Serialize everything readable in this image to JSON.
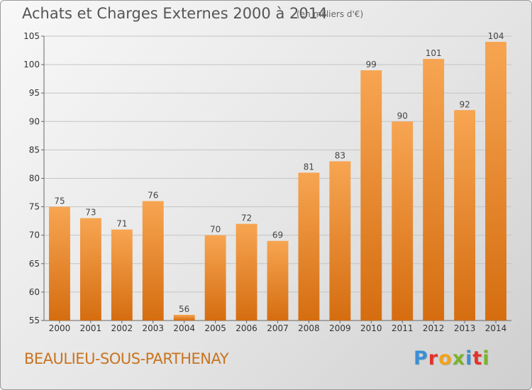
{
  "chart_data": {
    "type": "bar",
    "title": "Achats et Charges Externes 2000 à 2014",
    "subtitle": "(en milliers d'€)",
    "xlabel": "",
    "ylabel": "",
    "categories": [
      "2000",
      "2001",
      "2002",
      "2003",
      "2004",
      "2005",
      "2006",
      "2007",
      "2008",
      "2009",
      "2010",
      "2011",
      "2012",
      "2013",
      "2014"
    ],
    "values": [
      75,
      73,
      71,
      76,
      56,
      70,
      72,
      69,
      81,
      83,
      99,
      90,
      101,
      92,
      104
    ],
    "ylim": [
      55,
      105
    ],
    "yticks": [
      55,
      60,
      65,
      70,
      75,
      80,
      85,
      90,
      95,
      100,
      105
    ],
    "grid": true,
    "bar_color": "#f0922f"
  },
  "footer": {
    "commune": "BEAULIEU-SOUS-PARTHENAY",
    "logo_text": "Proxiti"
  }
}
